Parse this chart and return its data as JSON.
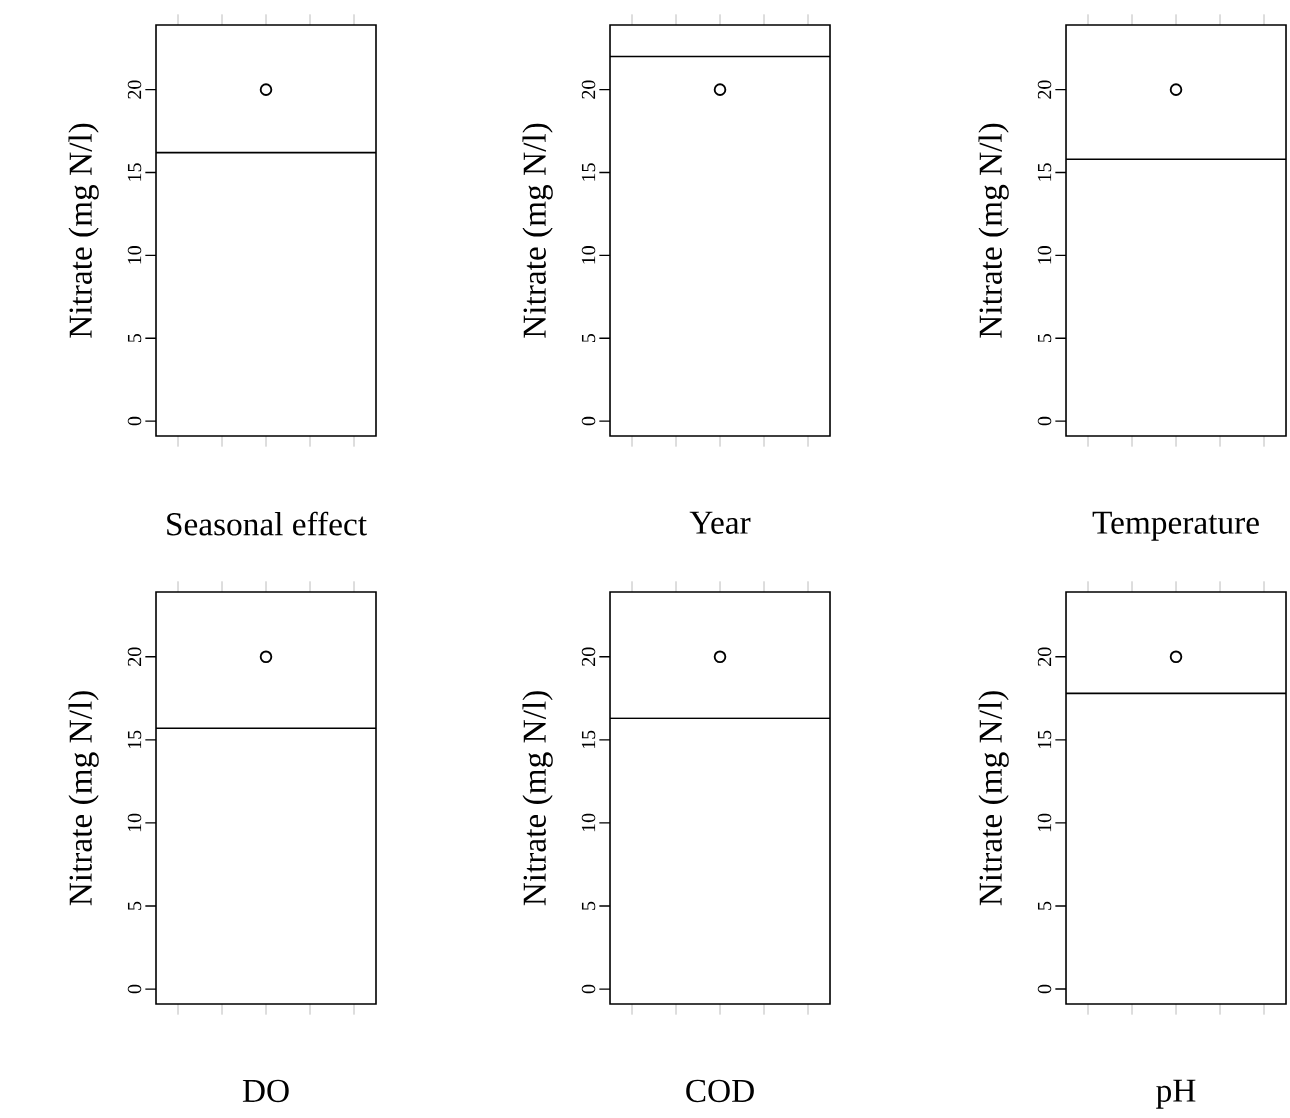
{
  "chart_data": [
    {
      "type": "scatter",
      "xlabel": "Seasonal effect",
      "ylabel": "Nitrate (mg N/l)",
      "categories": [
        null
      ],
      "series": [
        {
          "color": "#000000",
          "values": [
            20
          ]
        }
      ],
      "marker": "circle",
      "ylim": [
        -0.9,
        23.9
      ],
      "yticks": [
        0,
        5,
        10,
        15,
        20
      ],
      "ref_lines": [
        {
          "axis": "y",
          "value": 16.2,
          "color": "#000000"
        }
      ]
    },
    {
      "type": "scatter",
      "xlabel": "Year",
      "ylabel": "Nitrate (mg N/l)",
      "categories": [
        null
      ],
      "series": [
        {
          "color": "#000000",
          "values": [
            20
          ]
        }
      ],
      "marker": "circle",
      "ylim": [
        -0.9,
        23.9
      ],
      "yticks": [
        0,
        5,
        10,
        15,
        20
      ],
      "ref_lines": [
        {
          "axis": "y",
          "value": 22.0,
          "color": "#000000"
        }
      ]
    },
    {
      "type": "scatter",
      "xlabel": "Temperature",
      "ylabel": "Nitrate (mg N/l)",
      "categories": [
        null
      ],
      "series": [
        {
          "color": "#000000",
          "values": [
            20
          ]
        }
      ],
      "marker": "circle",
      "ylim": [
        -0.9,
        23.9
      ],
      "yticks": [
        0,
        5,
        10,
        15,
        20
      ],
      "ref_lines": [
        {
          "axis": "y",
          "value": 15.8,
          "color": "#000000"
        }
      ]
    },
    {
      "type": "scatter",
      "xlabel": "DO",
      "ylabel": "Nitrate (mg N/l)",
      "categories": [
        null
      ],
      "series": [
        {
          "color": "#000000",
          "values": [
            20
          ]
        }
      ],
      "marker": "circle",
      "ylim": [
        -0.9,
        23.9
      ],
      "yticks": [
        0,
        5,
        10,
        15,
        20
      ],
      "ref_lines": [
        {
          "axis": "y",
          "value": 15.7,
          "color": "#000000"
        }
      ]
    },
    {
      "type": "scatter",
      "xlabel": "COD",
      "ylabel": "Nitrate (mg N/l)",
      "categories": [
        null
      ],
      "series": [
        {
          "color": "#000000",
          "values": [
            20
          ]
        }
      ],
      "marker": "circle",
      "ylim": [
        -0.9,
        23.9
      ],
      "yticks": [
        0,
        5,
        10,
        15,
        20
      ],
      "ref_lines": [
        {
          "axis": "y",
          "value": 16.3,
          "color": "#000000"
        }
      ]
    },
    {
      "type": "scatter",
      "xlabel": "pH",
      "ylabel": "Nitrate (mg N/l)",
      "categories": [
        null
      ],
      "series": [
        {
          "color": "#000000",
          "values": [
            20
          ]
        }
      ],
      "marker": "circle",
      "ylim": [
        -0.9,
        23.9
      ],
      "yticks": [
        0,
        5,
        10,
        15,
        20
      ],
      "ref_lines": [
        {
          "axis": "y",
          "value": 17.8,
          "color": "#000000"
        }
      ]
    }
  ]
}
